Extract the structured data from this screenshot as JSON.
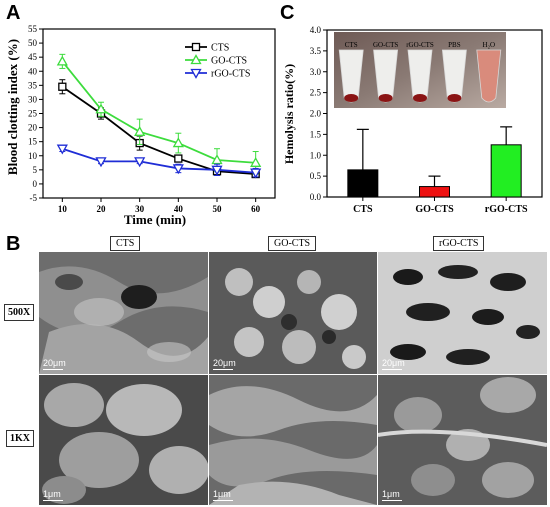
{
  "panel_labels": {
    "a": "A",
    "b": "B",
    "c": "C"
  },
  "chart_data": [
    {
      "type": "line",
      "title": "",
      "xlabel": "Time (min)",
      "ylabel": "Blood clotting index (%)",
      "xlim": [
        5,
        65
      ],
      "ylim": [
        -5,
        55
      ],
      "xticks": [
        10,
        20,
        30,
        40,
        50,
        60
      ],
      "yticks": [
        -5,
        0,
        5,
        10,
        15,
        20,
        25,
        30,
        35,
        40,
        45,
        50,
        55
      ],
      "legend_position": "top-right",
      "grid": false,
      "x": [
        10,
        20,
        30,
        40,
        50,
        60
      ],
      "series": [
        {
          "name": "CTS",
          "color": "#000000",
          "marker": "square",
          "values": [
            34.5,
            25,
            14.5,
            9,
            4.5,
            3.5
          ],
          "errors": [
            2.5,
            2,
            2.5,
            1,
            1.5,
            1
          ]
        },
        {
          "name": "GO-CTS",
          "color": "#3ddc3d",
          "marker": "triangle-up",
          "values": [
            43.5,
            26.5,
            18.5,
            14.5,
            8.5,
            7.5
          ],
          "errors": [
            2.5,
            2.5,
            4.5,
            3.5,
            4,
            4
          ]
        },
        {
          "name": "rGO-CTS",
          "color": "#1f2dd6",
          "marker": "triangle-down",
          "values": [
            12.5,
            8,
            8,
            5.5,
            5,
            4
          ],
          "errors": [
            1,
            0.8,
            0.8,
            1.5,
            2,
            1.5
          ]
        }
      ]
    },
    {
      "type": "bar",
      "title": "",
      "xlabel": "",
      "ylabel": "Hemolysis ratio(%)",
      "ylim": [
        0.0,
        4.0
      ],
      "yticks": [
        0.0,
        0.5,
        1.0,
        1.5,
        2.0,
        2.5,
        3.0,
        3.5,
        4.0
      ],
      "grid": false,
      "categories": [
        "CTS",
        "GO-CTS",
        "rGO-CTS"
      ],
      "values": [
        0.65,
        0.25,
        1.25
      ],
      "errors": [
        0.97,
        0.25,
        0.43
      ],
      "colors": [
        "#000000",
        "#ee1111",
        "#22ee22"
      ]
    }
  ],
  "inset_photo": {
    "tube_labels": [
      "CTS",
      "GO-CTS",
      "rGO-CTS",
      "PBS",
      "H₂O"
    ]
  },
  "sem_grid": {
    "columns": [
      "CTS",
      "GO-CTS",
      "rGO-CTS"
    ],
    "rows": [
      {
        "label": "500X",
        "scale": "20μm"
      },
      {
        "label": "1KX",
        "scale": "1μm"
      }
    ]
  }
}
